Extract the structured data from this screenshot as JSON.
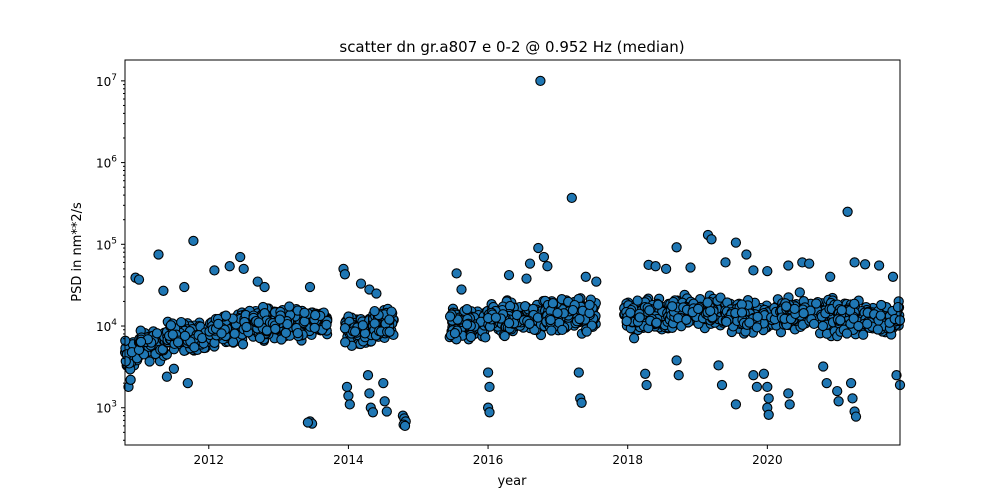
{
  "chart_data": {
    "type": "scatter",
    "title": "scatter dn gr.a807 e 0-2 @ 0.952 Hz (median)",
    "xlabel": "year",
    "ylabel": "PSD in nm**2/s",
    "xscale": "linear",
    "yscale": "log",
    "xlim": [
      2010.8,
      2021.9
    ],
    "ylim": [
      350,
      18000000
    ],
    "x_ticks": [
      2012,
      2014,
      2016,
      2018,
      2020
    ],
    "y_ticks": [
      {
        "value": 1000,
        "base": "10",
        "exp": "3"
      },
      {
        "value": 10000,
        "base": "10",
        "exp": "4"
      },
      {
        "value": 100000,
        "base": "10",
        "exp": "5"
      },
      {
        "value": 1000000,
        "base": "10",
        "exp": "6"
      },
      {
        "value": 10000000,
        "base": "10",
        "exp": "7"
      }
    ],
    "grid": false,
    "marker_color": "#1f77b4",
    "marker_edge": "#000000",
    "segments": [
      {
        "start": 2010.8,
        "end": 2011.0,
        "median": 4500
      },
      {
        "start": 2011.0,
        "end": 2011.4,
        "median": 6000
      },
      {
        "start": 2011.4,
        "end": 2012.0,
        "median": 7500
      },
      {
        "start": 2012.0,
        "end": 2012.5,
        "median": 9000
      },
      {
        "start": 2012.5,
        "end": 2013.5,
        "median": 11000
      },
      {
        "start": 2013.5,
        "end": 2013.7,
        "median": 11000
      },
      {
        "start": 2013.95,
        "end": 2014.35,
        "median": 9000
      },
      {
        "start": 2014.35,
        "end": 2014.65,
        "median": 11000
      },
      {
        "start": 2015.45,
        "end": 2016.0,
        "median": 10500
      },
      {
        "start": 2016.0,
        "end": 2016.8,
        "median": 12500
      },
      {
        "start": 2016.8,
        "end": 2017.55,
        "median": 13500
      },
      {
        "start": 2017.95,
        "end": 2018.6,
        "median": 13500
      },
      {
        "start": 2018.6,
        "end": 2019.4,
        "median": 15000
      },
      {
        "start": 2019.4,
        "end": 2020.2,
        "median": 13000
      },
      {
        "start": 2020.2,
        "end": 2021.0,
        "median": 14000
      },
      {
        "start": 2021.0,
        "end": 2021.9,
        "median": 12500
      }
    ],
    "points": [
      [
        2010.95,
        39000
      ],
      [
        2011.0,
        37000
      ],
      [
        2011.28,
        75000
      ],
      [
        2011.35,
        27000
      ],
      [
        2011.78,
        110000
      ],
      [
        2011.65,
        30000
      ],
      [
        2012.08,
        48000
      ],
      [
        2012.3,
        54000
      ],
      [
        2012.45,
        70000
      ],
      [
        2012.5,
        50000
      ],
      [
        2012.7,
        35000
      ],
      [
        2012.8,
        30000
      ],
      [
        2013.45,
        30000
      ],
      [
        2013.93,
        50000
      ],
      [
        2013.95,
        43000
      ],
      [
        2014.18,
        33000
      ],
      [
        2014.3,
        28000
      ],
      [
        2014.4,
        25000
      ],
      [
        2015.55,
        44000
      ],
      [
        2015.62,
        28000
      ],
      [
        2016.3,
        42000
      ],
      [
        2016.55,
        38000
      ],
      [
        2016.75,
        10000000
      ],
      [
        2016.72,
        90000
      ],
      [
        2016.8,
        70000
      ],
      [
        2016.85,
        54000
      ],
      [
        2016.6,
        58000
      ],
      [
        2017.2,
        370000
      ],
      [
        2017.4,
        40000
      ],
      [
        2017.55,
        35000
      ],
      [
        2018.3,
        56000
      ],
      [
        2018.4,
        54000
      ],
      [
        2018.55,
        50000
      ],
      [
        2018.7,
        92000
      ],
      [
        2018.9,
        52000
      ],
      [
        2019.15,
        130000
      ],
      [
        2019.2,
        115000
      ],
      [
        2019.4,
        60000
      ],
      [
        2019.55,
        105000
      ],
      [
        2019.7,
        75000
      ],
      [
        2019.8,
        48000
      ],
      [
        2020.0,
        47000
      ],
      [
        2020.3,
        55000
      ],
      [
        2020.5,
        60000
      ],
      [
        2020.6,
        58000
      ],
      [
        2020.9,
        40000
      ],
      [
        2021.15,
        250000
      ],
      [
        2021.25,
        60000
      ],
      [
        2021.4,
        57000
      ],
      [
        2021.6,
        55000
      ],
      [
        2021.8,
        40000
      ],
      [
        2013.45,
        680
      ],
      [
        2013.48,
        640
      ],
      [
        2013.42,
        660
      ],
      [
        2014.78,
        800
      ],
      [
        2014.8,
        740
      ],
      [
        2014.82,
        680
      ],
      [
        2014.79,
        620
      ],
      [
        2014.81,
        600
      ],
      [
        2013.98,
        1800
      ],
      [
        2014.0,
        1400
      ],
      [
        2014.02,
        1100
      ],
      [
        2014.28,
        2500
      ],
      [
        2014.3,
        1500
      ],
      [
        2014.32,
        1000
      ],
      [
        2014.35,
        880
      ],
      [
        2014.5,
        2000
      ],
      [
        2014.52,
        1200
      ],
      [
        2014.55,
        900
      ],
      [
        2016.0,
        2700
      ],
      [
        2016.02,
        1800
      ],
      [
        2016.0,
        1000
      ],
      [
        2016.02,
        880
      ],
      [
        2017.3,
        2700
      ],
      [
        2017.32,
        1300
      ],
      [
        2017.34,
        1150
      ],
      [
        2018.25,
        2600
      ],
      [
        2018.27,
        1900
      ],
      [
        2018.7,
        3800
      ],
      [
        2018.73,
        2500
      ],
      [
        2019.3,
        3300
      ],
      [
        2019.35,
        1900
      ],
      [
        2019.55,
        1100
      ],
      [
        2019.8,
        2500
      ],
      [
        2019.85,
        1800
      ],
      [
        2019.95,
        2600
      ],
      [
        2020.0,
        1800
      ],
      [
        2020.02,
        1300
      ],
      [
        2020.0,
        1000
      ],
      [
        2020.02,
        820
      ],
      [
        2020.3,
        1500
      ],
      [
        2020.32,
        1100
      ],
      [
        2020.8,
        3200
      ],
      [
        2020.85,
        2000
      ],
      [
        2021.0,
        1600
      ],
      [
        2021.02,
        1200
      ],
      [
        2021.2,
        2000
      ],
      [
        2021.22,
        1300
      ],
      [
        2021.25,
        900
      ],
      [
        2021.27,
        780
      ],
      [
        2021.85,
        2500
      ],
      [
        2021.9,
        1900
      ],
      [
        2010.85,
        1800
      ],
      [
        2010.88,
        2200
      ],
      [
        2011.4,
        2400
      ],
      [
        2011.5,
        3000
      ],
      [
        2011.7,
        2000
      ]
    ]
  }
}
